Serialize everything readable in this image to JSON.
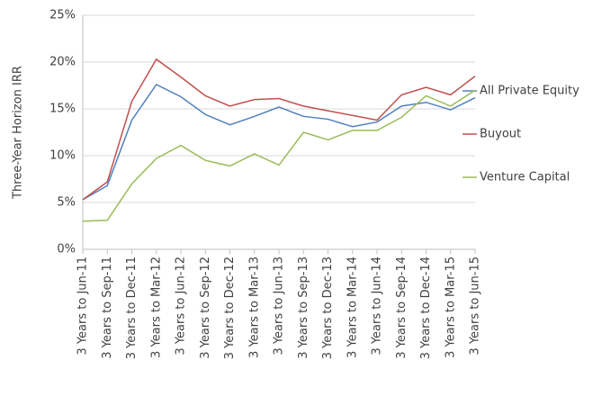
{
  "chart_data": {
    "type": "line",
    "y_label": "Three-Year Horizon IRR",
    "categories": [
      "3 Years to Jun-11",
      "3 Years to Sep-11",
      "3 Years to Dec-11",
      "3 Years to Mar-12",
      "3 Years to Jun-12",
      "3 Years to Sep-12",
      "3 Years to Dec-12",
      "3 Years to Mar-13",
      "3 Years to Jun-13",
      "3 Years to Sep-13",
      "3 Years to Dec-13",
      "3 Years to Mar-14",
      "3 Years to Jun-14",
      "3 Years to Sep-14",
      "3 Years to Dec-14",
      "3 Years to Mar-15",
      "3 Years to Jun-15"
    ],
    "series": [
      {
        "name": "All Private Equity",
        "color": "#4f81bd",
        "values": [
          5.3,
          6.8,
          13.8,
          17.6,
          16.3,
          14.4,
          13.3,
          14.2,
          15.2,
          14.2,
          13.9,
          13.1,
          13.6,
          15.3,
          15.7,
          14.9,
          16.2
        ]
      },
      {
        "name": "Buyout",
        "color": "#c0504d",
        "values": [
          5.3,
          7.2,
          15.8,
          20.3,
          18.4,
          16.4,
          15.3,
          16.0,
          16.1,
          15.3,
          14.8,
          14.3,
          13.8,
          16.5,
          17.3,
          16.5,
          18.5
        ]
      },
      {
        "name": "Venture Capital",
        "color": "#9bbb59",
        "values": [
          3.0,
          3.1,
          7.0,
          9.7,
          11.1,
          9.5,
          8.9,
          10.2,
          9.0,
          12.5,
          11.7,
          12.7,
          12.7,
          14.1,
          16.4,
          15.3,
          17.0
        ]
      }
    ],
    "ylim": [
      0,
      25
    ],
    "yticks": [
      {
        "value": 0,
        "label": "0%"
      },
      {
        "value": 5,
        "label": "5%"
      },
      {
        "value": 10,
        "label": "10%"
      },
      {
        "value": 15,
        "label": "15%"
      },
      {
        "value": 20,
        "label": "20%"
      },
      {
        "value": 25,
        "label": "25%"
      }
    ],
    "grid": true,
    "legend": "right"
  }
}
